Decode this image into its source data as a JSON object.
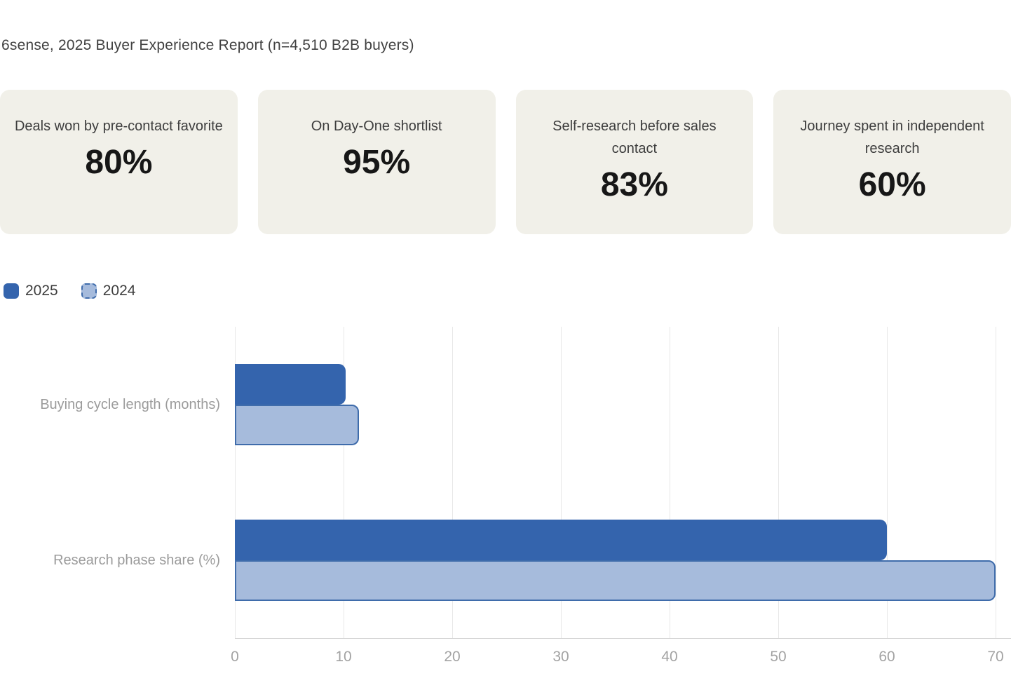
{
  "header": {
    "title": "6sense, 2025 Buyer Experience Report (n=4,510 B2B buyers)"
  },
  "stat_cards": [
    {
      "label": "Deals won by pre-contact favorite",
      "value": "80%"
    },
    {
      "label": "On Day-One shortlist",
      "value": "95%"
    },
    {
      "label": "Self-research before sales contact",
      "value": "83%"
    },
    {
      "label": "Journey spent in independent research",
      "value": "60%"
    }
  ],
  "chart_data": {
    "type": "bar",
    "orientation": "horizontal",
    "title": "",
    "xlabel": "",
    "ylabel": "",
    "categories": [
      "Buying cycle length (months)",
      "Research phase share (%)"
    ],
    "series": [
      {
        "name": "2025",
        "values": [
          10.2,
          60
        ],
        "color": "#3464ad",
        "edge_color": "#3464ad",
        "edge_style": "solid"
      },
      {
        "name": "2024",
        "values": [
          11.4,
          70
        ],
        "color": "#a6bbdc",
        "edge_color": "#3f6cab",
        "edge_style": "dashed"
      }
    ],
    "xlim": [
      0,
      70
    ],
    "xticks": [
      0,
      10,
      20,
      30,
      40,
      50,
      60,
      70
    ],
    "grid": true,
    "gridline_color": "#e8e8e8",
    "legend_position": "top-left"
  }
}
